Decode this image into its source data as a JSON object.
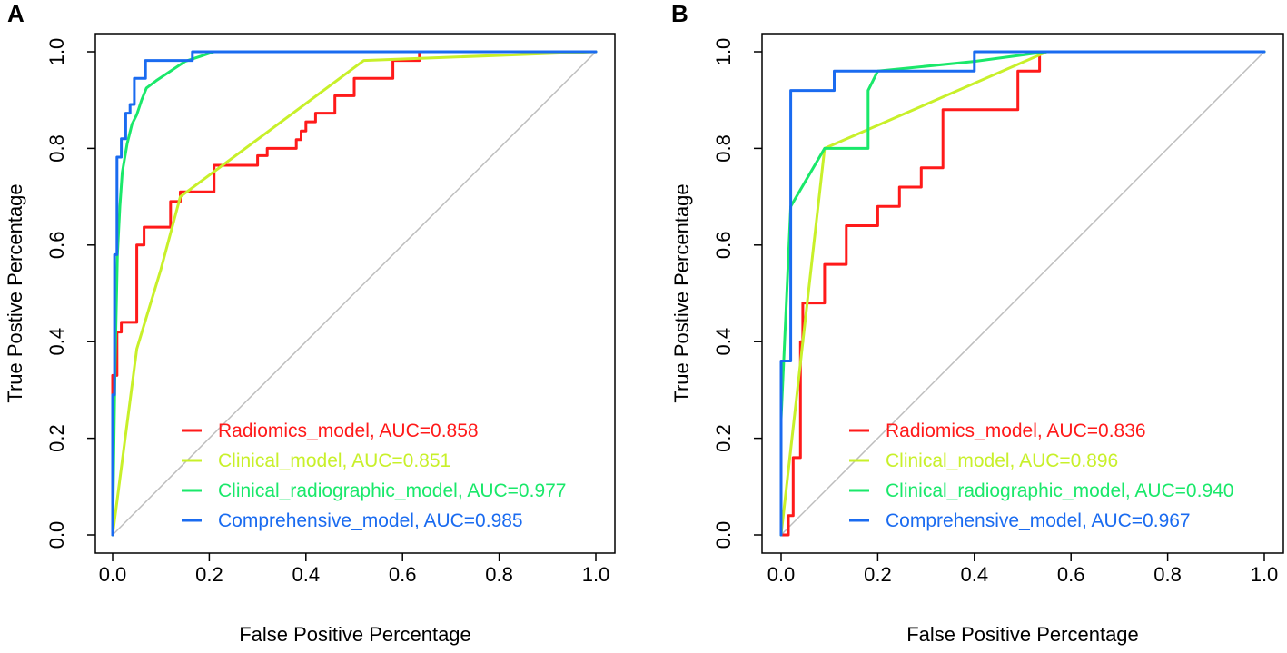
{
  "chart_data": [
    {
      "type": "line",
      "panel": "A",
      "xlabel": "False Positive Percentage",
      "ylabel": "True Postive Percentage",
      "xlim": [
        0,
        1
      ],
      "ylim": [
        0,
        1
      ],
      "xticks": [
        "0.0",
        "0.2",
        "0.4",
        "0.6",
        "0.8",
        "1.0"
      ],
      "yticks": [
        "0.0",
        "0.2",
        "0.4",
        "0.6",
        "0.8",
        "1.0"
      ],
      "legend_position": "bottom-right",
      "reference_line": {
        "x": [
          0,
          1
        ],
        "y": [
          0,
          1
        ],
        "color": "#bdbdbd"
      },
      "series": [
        {
          "name": "Radiomics_model",
          "legend": "Radiomics_model, AUC=0.858",
          "auc": 0.858,
          "color": "#ff1a1a",
          "x": [
            0,
            0,
            0,
            0.009,
            0.009,
            0.018,
            0.018,
            0.05,
            0.05,
            0.065,
            0.065,
            0.12,
            0.12,
            0.14,
            0.14,
            0.21,
            0.21,
            0.3,
            0.3,
            0.32,
            0.32,
            0.38,
            0.38,
            0.39,
            0.39,
            0.4,
            0.4,
            0.42,
            0.42,
            0.46,
            0.46,
            0.5,
            0.5,
            0.58,
            0.58,
            0.635,
            0.635,
            1.0
          ],
          "y": [
            0,
            0.29,
            0.33,
            0.33,
            0.42,
            0.42,
            0.44,
            0.44,
            0.6,
            0.6,
            0.637,
            0.637,
            0.69,
            0.69,
            0.71,
            0.71,
            0.765,
            0.765,
            0.785,
            0.785,
            0.8,
            0.8,
            0.818,
            0.818,
            0.836,
            0.836,
            0.855,
            0.855,
            0.873,
            0.873,
            0.909,
            0.909,
            0.945,
            0.945,
            0.982,
            0.982,
            1.0,
            1.0
          ]
        },
        {
          "name": "Clinical_model",
          "legend": "Clinical_model, AUC=0.851",
          "auc": 0.851,
          "color": "#c8f02a",
          "x": [
            0,
            0.05,
            0.1,
            0.14,
            0.52,
            1.0
          ],
          "y": [
            0,
            0.385,
            0.55,
            0.7,
            0.982,
            1.0
          ],
          "smooth": true
        },
        {
          "name": "Clinical_radiographic_model",
          "legend": "Clinical_radiographic_model, AUC=0.977",
          "auc": 0.977,
          "color": "#1ae86a",
          "x": [
            0,
            0.005,
            0.01,
            0.015,
            0.02,
            0.03,
            0.04,
            0.05,
            0.06,
            0.07,
            0.09,
            0.12,
            0.15,
            0.18,
            0.21,
            1.0
          ],
          "y": [
            0,
            0.35,
            0.58,
            0.68,
            0.75,
            0.81,
            0.85,
            0.87,
            0.9,
            0.925,
            0.94,
            0.96,
            0.98,
            0.99,
            1.0,
            1.0
          ],
          "smooth": true
        },
        {
          "name": "Comprehensive_model",
          "legend": "Comprehensive_model, AUC=0.985",
          "auc": 0.985,
          "color": "#1a6bf0",
          "x": [
            0,
            0,
            0.004,
            0.004,
            0.009,
            0.009,
            0.018,
            0.018,
            0.027,
            0.027,
            0.036,
            0.036,
            0.045,
            0.045,
            0.055,
            0.055,
            0.068,
            0.068,
            0.16,
            0.16,
            0.165,
            0.165,
            1.0
          ],
          "y": [
            0,
            0.29,
            0.29,
            0.58,
            0.58,
            0.782,
            0.782,
            0.82,
            0.82,
            0.873,
            0.873,
            0.891,
            0.891,
            0.945,
            0.945,
            0.945,
            0.945,
            0.982,
            0.982,
            0.982,
            0.982,
            1.0,
            1.0
          ]
        }
      ]
    },
    {
      "type": "line",
      "panel": "B",
      "xlabel": "False Positive Percentage",
      "ylabel": "True Postive Percentage",
      "xlim": [
        0,
        1
      ],
      "ylim": [
        0,
        1
      ],
      "xticks": [
        "0.0",
        "0.2",
        "0.4",
        "0.6",
        "0.8",
        "1.0"
      ],
      "yticks": [
        "0.0",
        "0.2",
        "0.4",
        "0.6",
        "0.8",
        "1.0"
      ],
      "legend_position": "bottom-right",
      "reference_line": {
        "x": [
          0,
          1
        ],
        "y": [
          0,
          1
        ],
        "color": "#bdbdbd"
      },
      "series": [
        {
          "name": "Radiomics_model",
          "legend": "Radiomics_model, AUC=0.836",
          "auc": 0.836,
          "color": "#ff1a1a",
          "x": [
            0,
            0.015,
            0.015,
            0.025,
            0.025,
            0.04,
            0.04,
            0.045,
            0.045,
            0.09,
            0.09,
            0.135,
            0.135,
            0.2,
            0.2,
            0.245,
            0.245,
            0.29,
            0.29,
            0.31,
            0.31,
            0.335,
            0.335,
            0.49,
            0.49,
            0.535,
            0.535,
            1.0
          ],
          "y": [
            0,
            0,
            0.04,
            0.04,
            0.16,
            0.16,
            0.4,
            0.4,
            0.48,
            0.48,
            0.56,
            0.56,
            0.64,
            0.64,
            0.68,
            0.68,
            0.72,
            0.72,
            0.76,
            0.76,
            0.76,
            0.76,
            0.88,
            0.88,
            0.96,
            0.96,
            1.0,
            1.0
          ]
        },
        {
          "name": "Clinical_model",
          "legend": "Clinical_model, AUC=0.896",
          "auc": 0.896,
          "color": "#c8f02a",
          "x": [
            0,
            0.09,
            0.55,
            1.0
          ],
          "y": [
            0,
            0.8,
            1.0,
            1.0
          ]
        },
        {
          "name": "Clinical_radiographic_model",
          "legend": "Clinical_radiographic_model, AUC=0.940",
          "auc": 0.94,
          "color": "#1ae86a",
          "x": [
            0,
            0,
            0.02,
            0.09,
            0.18,
            0.18,
            0.2,
            0.4,
            0.55,
            1.0
          ],
          "y": [
            0,
            0.24,
            0.68,
            0.8,
            0.8,
            0.92,
            0.96,
            0.98,
            1.0,
            1.0
          ]
        },
        {
          "name": "Comprehensive_model",
          "legend": "Comprehensive_model, AUC=0.967",
          "auc": 0.967,
          "color": "#1a6bf0",
          "x": [
            0,
            0,
            0.02,
            0.02,
            0.11,
            0.11,
            0.4,
            0.4,
            1.0
          ],
          "y": [
            0,
            0.36,
            0.36,
            0.92,
            0.92,
            0.96,
            0.96,
            1.0,
            1.0
          ]
        }
      ]
    }
  ]
}
